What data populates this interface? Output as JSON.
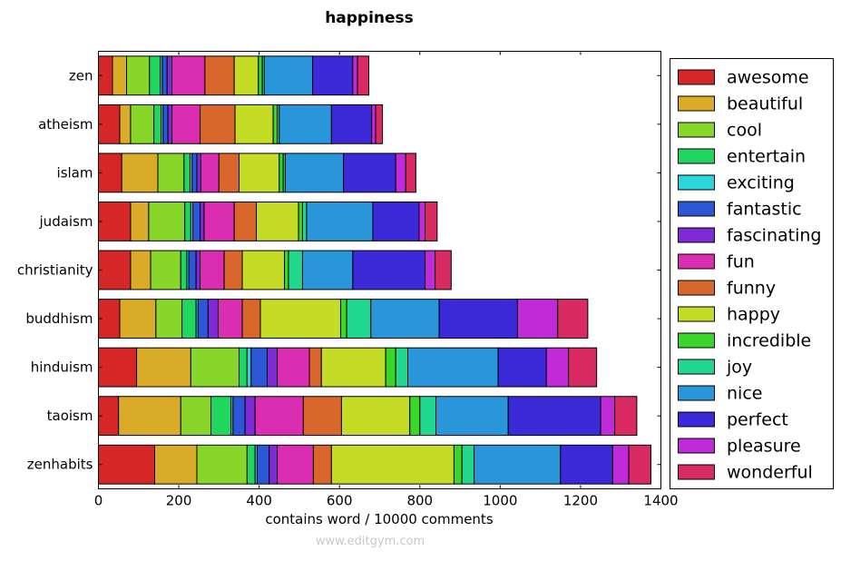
{
  "chart_data": {
    "type": "bar",
    "orientation": "horizontal",
    "stacked": true,
    "title": "happiness",
    "xlabel": "contains word / 10000 comments",
    "ylabel": "",
    "xlim": [
      0,
      1400
    ],
    "xticks": [
      "0",
      "200",
      "400",
      "600",
      "800",
      "1000",
      "1200",
      "1400"
    ],
    "categories": [
      "zen",
      "atheism",
      "islam",
      "judaism",
      "christianity",
      "buddhism",
      "hinduism",
      "taoism",
      "zenhabits"
    ],
    "legend_position": "right",
    "grid": false,
    "series": [
      {
        "name": "awesome",
        "color": "#d62728",
        "values": [
          35,
          53,
          58,
          80,
          80,
          53,
          95,
          50,
          140
        ]
      },
      {
        "name": "beautiful",
        "color": "#d9ab26",
        "values": [
          35,
          27,
          90,
          45,
          50,
          90,
          135,
          155,
          105
        ]
      },
      {
        "name": "cool",
        "color": "#88d62a",
        "values": [
          57,
          58,
          65,
          90,
          75,
          65,
          120,
          75,
          125
        ]
      },
      {
        "name": "entertain",
        "color": "#21d65e",
        "values": [
          27,
          18,
          15,
          15,
          15,
          35,
          20,
          50,
          20
        ]
      },
      {
        "name": "exciting",
        "color": "#2ad6d9",
        "values": [
          5,
          5,
          5,
          5,
          5,
          5,
          10,
          5,
          5
        ]
      },
      {
        "name": "fantastic",
        "color": "#2c57d6",
        "values": [
          12,
          12,
          12,
          18,
          18,
          25,
          40,
          30,
          30
        ]
      },
      {
        "name": "fascinating",
        "color": "#7e2ad6",
        "values": [
          12,
          10,
          10,
          10,
          10,
          25,
          25,
          25,
          20
        ]
      },
      {
        "name": "fun",
        "color": "#db2db2",
        "values": [
          82,
          70,
          45,
          75,
          60,
          60,
          80,
          120,
          90
        ]
      },
      {
        "name": "funny",
        "color": "#d9662a",
        "values": [
          73,
          87,
          50,
          55,
          45,
          45,
          30,
          95,
          45
        ]
      },
      {
        "name": "happy",
        "color": "#c4dc25",
        "values": [
          60,
          95,
          100,
          105,
          105,
          200,
          160,
          170,
          305
        ]
      },
      {
        "name": "incredible",
        "color": "#3ad62a",
        "values": [
          10,
          10,
          10,
          10,
          10,
          15,
          25,
          25,
          20
        ]
      },
      {
        "name": "joy",
        "color": "#22d88f",
        "values": [
          5,
          5,
          5,
          10,
          35,
          60,
          30,
          40,
          30
        ]
      },
      {
        "name": "nice",
        "color": "#2996d9",
        "values": [
          120,
          130,
          145,
          165,
          125,
          170,
          225,
          180,
          215
        ]
      },
      {
        "name": "perfect",
        "color": "#3c2ad9",
        "values": [
          100,
          100,
          130,
          115,
          180,
          195,
          120,
          230,
          130
        ]
      },
      {
        "name": "pleasure",
        "color": "#c12ad9",
        "values": [
          12,
          10,
          25,
          15,
          25,
          100,
          55,
          35,
          40
        ]
      },
      {
        "name": "wonderful",
        "color": "#d92a63",
        "values": [
          28,
          17,
          25,
          30,
          40,
          75,
          70,
          55,
          55
        ]
      }
    ]
  },
  "watermark": "www.editgym.com"
}
